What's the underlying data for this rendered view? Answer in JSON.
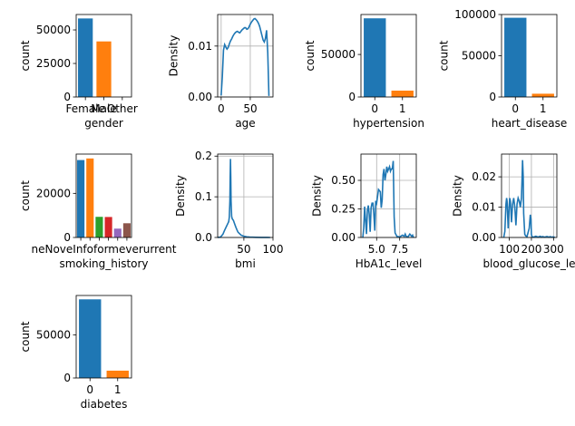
{
  "chart_data": [
    {
      "type": "bar",
      "xlabel": "gender",
      "ylabel": "count",
      "categories": [
        "Female",
        "Male",
        "Other"
      ],
      "values": [
        58552,
        41430,
        18
      ],
      "colors": [
        "#1f77b4",
        "#ff7f0e",
        "#2ca02c"
      ],
      "ylim": [
        0,
        61500
      ],
      "yticks": [
        0,
        25000,
        50000
      ],
      "ytick_labels": [
        "0",
        "25000",
        "50000"
      ],
      "grid": false
    },
    {
      "type": "line",
      "xlabel": "age",
      "ylabel": "Density",
      "x": [
        0,
        2,
        4,
        6,
        8,
        10,
        12,
        14,
        16,
        18,
        20,
        22,
        24,
        26,
        28,
        30,
        32,
        34,
        36,
        38,
        40,
        42,
        44,
        46,
        48,
        50,
        52,
        54,
        56,
        58,
        60,
        62,
        64,
        66,
        68,
        70,
        72,
        74,
        76,
        78,
        80,
        82
      ],
      "y": [
        0.0003,
        0.004,
        0.0092,
        0.0103,
        0.0098,
        0.0094,
        0.0097,
        0.0104,
        0.011,
        0.0114,
        0.0119,
        0.0123,
        0.0126,
        0.0128,
        0.0129,
        0.0127,
        0.0126,
        0.0129,
        0.0132,
        0.0134,
        0.0136,
        0.0136,
        0.0133,
        0.0134,
        0.0138,
        0.0143,
        0.0147,
        0.015,
        0.0153,
        0.0154,
        0.0152,
        0.0149,
        0.0145,
        0.0139,
        0.013,
        0.0121,
        0.0112,
        0.0108,
        0.0115,
        0.0131,
        0.0088,
        0.0002
      ],
      "xlim": [
        -6,
        89
      ],
      "ylim": [
        0,
        0.0162
      ],
      "xticks": [
        0,
        50
      ],
      "xtick_labels": [
        "0",
        "50"
      ],
      "yticks": [
        0,
        0.01
      ],
      "ytick_labels": [
        "0.00",
        "0.01"
      ],
      "color": "#1f77b4",
      "grid": true
    },
    {
      "type": "bar",
      "xlabel": "hypertension",
      "ylabel": "count",
      "categories": [
        "0",
        "1"
      ],
      "values": [
        92515,
        7485
      ],
      "colors": [
        "#1f77b4",
        "#ff7f0e"
      ],
      "ylim": [
        0,
        97000
      ],
      "yticks": [
        0,
        50000
      ],
      "ytick_labels": [
        "0",
        "50000"
      ],
      "grid": false
    },
    {
      "type": "bar",
      "xlabel": "heart_disease",
      "ylabel": "count",
      "categories": [
        "0",
        "1"
      ],
      "values": [
        96058,
        3942
      ],
      "colors": [
        "#1f77b4",
        "#ff7f0e"
      ],
      "ylim": [
        0,
        100000
      ],
      "yticks": [
        0,
        50000,
        100000
      ],
      "ytick_labels": [
        "0",
        "50000",
        "100000"
      ],
      "grid": false
    },
    {
      "type": "bar",
      "xlabel": "smoking_history",
      "ylabel": "count",
      "categories": [
        "never",
        "No Info",
        "former",
        "current",
        "not current",
        "ever"
      ],
      "tick_labels_shown": "neNoveInfoformeverurrent",
      "values": [
        35095,
        35816,
        9352,
        9286,
        4004,
        6447
      ],
      "colors": [
        "#1f77b4",
        "#ff7f0e",
        "#2ca02c",
        "#d62728",
        "#9467bd",
        "#8c564b"
      ],
      "ylim": [
        0,
        37800
      ],
      "yticks": [
        0,
        20000
      ],
      "ytick_labels": [
        "0",
        "20000"
      ],
      "grid": false
    },
    {
      "type": "line",
      "xlabel": "bmi",
      "ylabel": "Density",
      "x": [
        5,
        10,
        14,
        17,
        20,
        22,
        24,
        25,
        26,
        26.5,
        27,
        27.5,
        28,
        29,
        30,
        32,
        34,
        36,
        38,
        40,
        45,
        50,
        55,
        60,
        70,
        80,
        90,
        95
      ],
      "y": [
        0,
        0.001,
        0.008,
        0.018,
        0.027,
        0.033,
        0.039,
        0.05,
        0.09,
        0.15,
        0.193,
        0.15,
        0.09,
        0.052,
        0.046,
        0.042,
        0.034,
        0.026,
        0.019,
        0.013,
        0.006,
        0.003,
        0.0015,
        0.001,
        0.0005,
        0.0002,
        0.0001,
        0
      ],
      "xlim": [
        5,
        100
      ],
      "ylim": [
        0,
        0.205
      ],
      "xticks": [
        50,
        100
      ],
      "xtick_labels": [
        "50",
        "100"
      ],
      "yticks": [
        0,
        0.1,
        0.2
      ],
      "ytick_labels": [
        "0.0",
        "0.1",
        "0.2"
      ],
      "color": "#1f77b4",
      "grid": true
    },
    {
      "type": "line",
      "xlabel": "HbA1c_level",
      "ylabel": "Density",
      "x": [
        3.5,
        3.6,
        3.7,
        3.8,
        3.9,
        4.0,
        4.1,
        4.2,
        4.3,
        4.4,
        4.5,
        4.6,
        4.7,
        4.8,
        4.9,
        5.0,
        5.2,
        5.4,
        5.5,
        5.6,
        5.7,
        5.8,
        5.9,
        6.0,
        6.1,
        6.2,
        6.3,
        6.4,
        6.5,
        6.6,
        6.7,
        6.8,
        6.9,
        7.0,
        7.2,
        7.5,
        7.8,
        8.0,
        8.1,
        8.2,
        8.4,
        8.6,
        8.8,
        8.9,
        9.0
      ],
      "y": [
        0,
        0.08,
        0.27,
        0.15,
        0.03,
        0.24,
        0.28,
        0.2,
        0.05,
        0.26,
        0.3,
        0.3,
        0.2,
        0.06,
        0.32,
        0.3,
        0.42,
        0.4,
        0.26,
        0.33,
        0.55,
        0.6,
        0.5,
        0.55,
        0.62,
        0.58,
        0.6,
        0.62,
        0.58,
        0.6,
        0.6,
        0.67,
        0.18,
        0.04,
        0.01,
        0.005,
        0.02,
        0.01,
        0.03,
        0.01,
        0.005,
        0.03,
        0.01,
        0.02,
        0
      ],
      "xlim": [
        3.3,
        9.3
      ],
      "ylim": [
        0,
        0.73
      ],
      "xticks": [
        5.0,
        7.5
      ],
      "xtick_labels": [
        "5.0",
        "7.5"
      ],
      "yticks": [
        0,
        0.25,
        0.5
      ],
      "ytick_labels": [
        "0.00",
        "0.25",
        "0.50"
      ],
      "color": "#1f77b4",
      "grid": true
    },
    {
      "type": "line",
      "xlabel": "blood_glucose_le",
      "ylabel": "Density",
      "x": [
        75,
        80,
        85,
        88,
        90,
        95,
        100,
        102,
        105,
        110,
        115,
        120,
        125,
        130,
        135,
        140,
        145,
        150,
        155,
        158,
        160,
        163,
        165,
        170,
        175,
        180,
        190,
        195,
        198,
        200,
        203,
        210,
        220,
        230,
        240,
        245,
        250,
        260,
        270,
        280,
        285,
        290,
        300,
        305
      ],
      "y": [
        0,
        0.002,
        0.011,
        0.013,
        0.012,
        0.003,
        0.011,
        0.013,
        0.012,
        0.005,
        0.011,
        0.013,
        0.01,
        0.004,
        0.011,
        0.013,
        0.012,
        0.01,
        0.013,
        0.02,
        0.0255,
        0.02,
        0.008,
        0.001,
        0.0005,
        0.0003,
        0.003,
        0.0075,
        0.006,
        0.001,
        0.0002,
        0.0001,
        0.0004,
        0.0001,
        0.0004,
        0.0001,
        0.0003,
        0.0001,
        0.0003,
        0.0001,
        0.0003,
        0.0001,
        0.0002,
        0
      ],
      "xlim": [
        65,
        315
      ],
      "ylim": [
        0,
        0.0275
      ],
      "xticks": [
        100,
        200,
        300
      ],
      "xtick_labels": [
        "100",
        "200",
        "300"
      ],
      "yticks": [
        0,
        0.01,
        0.02
      ],
      "ytick_labels": [
        "0.00",
        "0.01",
        "0.02"
      ],
      "color": "#1f77b4",
      "grid": true
    },
    {
      "type": "bar",
      "xlabel": "diabetes",
      "ylabel": "count",
      "categories": [
        "0",
        "1"
      ],
      "values": [
        91500,
        8500
      ],
      "colors": [
        "#1f77b4",
        "#ff7f0e"
      ],
      "ylim": [
        0,
        96000
      ],
      "yticks": [
        0,
        50000
      ],
      "ytick_labels": [
        "0",
        "50000"
      ],
      "grid": false
    }
  ]
}
